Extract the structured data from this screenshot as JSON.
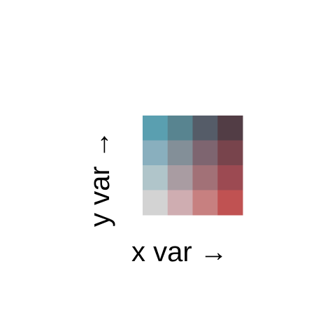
{
  "legend": {
    "x_label": "x var →",
    "y_label": "y var →",
    "colors": [
      [
        "#5a9fb0",
        "#588490",
        "#555c68",
        "#523d45"
      ],
      [
        "#89afbe",
        "#838f98",
        "#7e6570",
        "#78444c"
      ],
      [
        "#b0c5ca",
        "#a99ca2",
        "#a27177",
        "#9c4a52"
      ],
      [
        "#d3d3d3",
        "#cfadb1",
        "#c78080",
        "#c05252"
      ]
    ]
  }
}
